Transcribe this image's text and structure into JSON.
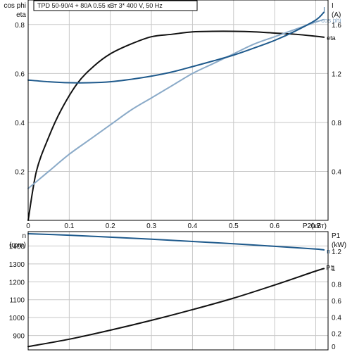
{
  "chart_data": [
    {
      "type": "line",
      "title": "TPD 50-90/4 + 80A    0.55 кВт   3* 400 V, 50 Hz",
      "xlabel": "P2(кВт)",
      "x_ticks": [
        "0",
        "0.1",
        "0.2",
        "0.3",
        "0.4",
        "0.5",
        "0.6",
        "0.7"
      ],
      "xlim": [
        0,
        0.73
      ],
      "ylabel_left": [
        "cos phi",
        "eta"
      ],
      "ylim_left": [
        0,
        0.9
      ],
      "y_ticks_left": [
        "0.2",
        "0.4",
        "0.6",
        "0.8"
      ],
      "ylabel_right": [
        "I",
        "(A)"
      ],
      "ylim_right": [
        0,
        1.8
      ],
      "y_ticks_right": [
        "0.4",
        "0.8",
        "1.2",
        "1.6"
      ],
      "grid": true,
      "series": [
        {
          "name": "eta",
          "axis": "left",
          "color": "#111111",
          "x": [
            0,
            0.02,
            0.05,
            0.08,
            0.12,
            0.16,
            0.2,
            0.25,
            0.3,
            0.35,
            0.4,
            0.45,
            0.5,
            0.55,
            0.6,
            0.65,
            0.7,
            0.72
          ],
          "values": [
            0,
            0.2,
            0.34,
            0.45,
            0.56,
            0.63,
            0.68,
            0.72,
            0.75,
            0.76,
            0.77,
            0.772,
            0.772,
            0.77,
            0.765,
            0.76,
            0.752,
            0.748
          ]
        },
        {
          "name": "cos phi",
          "axis": "left",
          "color": "#8aaac8",
          "x": [
            0,
            0.05,
            0.1,
            0.15,
            0.2,
            0.25,
            0.3,
            0.35,
            0.4,
            0.45,
            0.5,
            0.55,
            0.6,
            0.65,
            0.7,
            0.72
          ],
          "values": [
            0.13,
            0.2,
            0.27,
            0.33,
            0.39,
            0.45,
            0.5,
            0.55,
            0.6,
            0.64,
            0.68,
            0.72,
            0.75,
            0.78,
            0.81,
            0.82
          ]
        },
        {
          "name": "I",
          "axis": "right",
          "color": "#1f5a8c",
          "x": [
            0,
            0.05,
            0.1,
            0.15,
            0.2,
            0.25,
            0.3,
            0.35,
            0.4,
            0.45,
            0.5,
            0.55,
            0.6,
            0.65,
            0.7,
            0.72
          ],
          "values": [
            1.146,
            1.132,
            1.124,
            1.124,
            1.132,
            1.152,
            1.178,
            1.212,
            1.256,
            1.302,
            1.35,
            1.408,
            1.47,
            1.546,
            1.636,
            1.7
          ]
        }
      ]
    },
    {
      "type": "line",
      "xlim": [
        0,
        0.73
      ],
      "ylabel_left": [
        "n",
        "(rpm)"
      ],
      "ylim_left": [
        820,
        1480
      ],
      "y_ticks_left": [
        "900",
        "1000",
        "1100",
        "1200",
        "1300",
        "1400"
      ],
      "ylabel_right": [
        "P1",
        "(kW)"
      ],
      "ylim_right": [
        0,
        1.44
      ],
      "y_ticks_right": [
        "0",
        "0.2",
        "0.4",
        "0.6",
        "0.8",
        "1",
        "1.2"
      ],
      "grid": true,
      "series": [
        {
          "name": "n",
          "axis": "left",
          "color": "#1f5a8c",
          "x": [
            0,
            0.1,
            0.2,
            0.3,
            0.4,
            0.5,
            0.6,
            0.7,
            0.72
          ],
          "values": [
            1468,
            1460,
            1449,
            1438,
            1425,
            1412,
            1398,
            1383,
            1378
          ]
        },
        {
          "name": "P1",
          "axis": "right",
          "color": "#111111",
          "x": [
            0,
            0.1,
            0.2,
            0.3,
            0.4,
            0.5,
            0.6,
            0.7,
            0.72
          ],
          "values": [
            0.04,
            0.13,
            0.24,
            0.36,
            0.49,
            0.63,
            0.79,
            0.96,
            0.99
          ]
        }
      ]
    }
  ]
}
